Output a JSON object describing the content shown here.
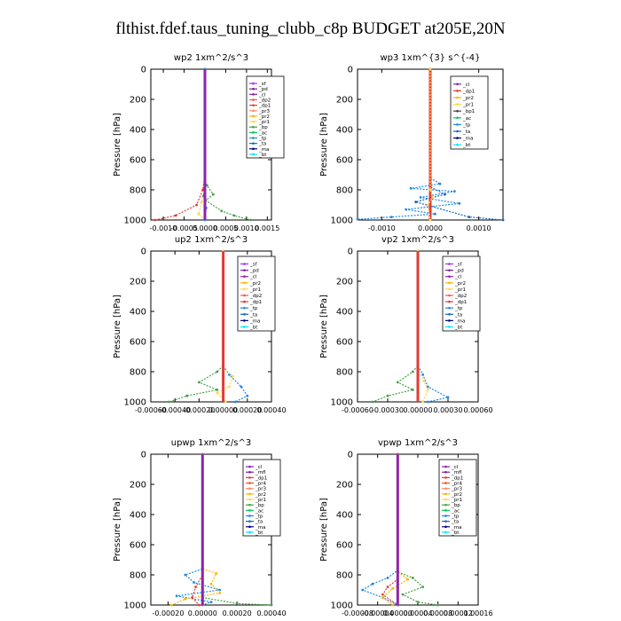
{
  "figure": {
    "title": "flthist.fdef.taus_tuning_clubb_c8p  BUDGET at205E,20N"
  },
  "legend_colors": {
    "_sf": "#9b30ff",
    "_pd": "#7b1fa2",
    "_cl": "#8e24aa",
    "_mfl": "#7b1fa2",
    "_dp1": "#e53935",
    "_dp2": "#ff5252",
    "_pr1": "#ffd54f",
    "_pr2": "#ffb300",
    "_pr3": "#ff8a65",
    "_pr4": "#f4511e",
    "_bp": "#43a047",
    "_ac": "#00c853",
    "_tp": "#1e88e5",
    "_ta": "#1565c0",
    "_ma": "#000080",
    "_bt": "#00e5ff"
  },
  "chart_data": [
    {
      "type": "line",
      "title": "wp2   1xm^2/s^3",
      "ylabel": "Pressure [hPa]",
      "ylim": [
        1000,
        0
      ],
      "xlim": [
        -0.0013,
        0.0016
      ],
      "xticks": [
        -0.001,
        -0.0005,
        0.0,
        0.0005,
        0.001,
        0.0015
      ],
      "xtick_labels": [
        "-0.0010",
        "-0.0005",
        "0.0000",
        "0.0005",
        "0.0010",
        "0.0015"
      ],
      "yticks": [
        0,
        200,
        400,
        600,
        800,
        1000
      ],
      "ytick_labels": [
        "0",
        "200",
        "400",
        "600",
        "800",
        "1000"
      ],
      "legend": [
        "_sf",
        "_pd",
        "_cl",
        "_dp2",
        "_dp1",
        "_pr3",
        "_pr2",
        "_pr1",
        "_bp",
        "_ac",
        "_tp",
        "_ta",
        "_ma",
        "_bt"
      ],
      "series": [
        {
          "name": "_dp1",
          "color": "#e53935",
          "points": [
            [
              0,
              0
            ],
            [
              0,
              700
            ],
            [
              -5e-05,
              800
            ],
            [
              -0.0002,
              900
            ],
            [
              -0.0007,
              970
            ],
            [
              -0.0012,
              1000
            ]
          ]
        },
        {
          "name": "_pr1",
          "color": "#ffd54f",
          "points": [
            [
              0,
              0
            ],
            [
              0,
              780
            ],
            [
              -8e-05,
              880
            ],
            [
              -0.00015,
              960
            ],
            [
              0,
              1000
            ]
          ]
        },
        {
          "name": "_bp",
          "color": "#43a047",
          "points": [
            [
              0,
              0
            ],
            [
              0,
              740
            ],
            [
              5e-05,
              770
            ],
            [
              0.0002,
              830
            ],
            [
              2e-05,
              870
            ],
            [
              0.0004,
              940
            ],
            [
              0.0007,
              970
            ],
            [
              0.0011,
              1000
            ]
          ]
        },
        {
          "name": "_tp",
          "color": "#1e88e5",
          "points": [
            [
              0,
              0
            ],
            [
              0,
              760
            ],
            [
              -3e-05,
              840
            ],
            [
              3e-05,
              920
            ],
            [
              0,
              1000
            ]
          ]
        },
        {
          "name": "_cl",
          "color": "#8e24aa",
          "points": [
            [
              0,
              0
            ],
            [
              0,
              1000
            ]
          ]
        }
      ]
    },
    {
      "type": "line",
      "title": "wp3   1xm^{3} s^{-4}",
      "ylabel": "Pressure [hPa]",
      "ylim": [
        1000,
        0
      ],
      "xlim": [
        -0.0015,
        0.0015
      ],
      "xticks": [
        -0.001,
        0.0,
        0.001
      ],
      "xtick_labels": [
        "-0.0010",
        "0.0000",
        "0.0010"
      ],
      "yticks": [
        0,
        200,
        400,
        600,
        800,
        1000
      ],
      "ytick_labels": [
        "0",
        "200",
        "400",
        "600",
        "800",
        "1000"
      ],
      "legend": [
        "_cl",
        "_dp1",
        "_pr2",
        "_pr1",
        "_bp1",
        "_ac",
        "_tp",
        "_ta",
        "_ma",
        "_bt"
      ],
      "series": [
        {
          "name": "_tp",
          "color": "#1e88e5",
          "points": [
            [
              0,
              0
            ],
            [
              0,
              720
            ],
            [
              0.0002,
              760
            ],
            [
              -0.0004,
              790
            ],
            [
              0.0005,
              810
            ],
            [
              -0.0002,
              850
            ],
            [
              0.0006,
              890
            ],
            [
              -0.0005,
              930
            ],
            [
              0.0001,
              960
            ],
            [
              -0.0008,
              980
            ],
            [
              -0.0015,
              995
            ]
          ]
        },
        {
          "name": "_ta",
          "color": "#1565c0",
          "points": [
            [
              0,
              0
            ],
            [
              0,
              780
            ],
            [
              0.0003,
              830
            ],
            [
              -0.0003,
              880
            ],
            [
              0.0008,
              980
            ],
            [
              0.0015,
              1000
            ]
          ]
        },
        {
          "name": "_dp1",
          "color": "#e53935",
          "points": [
            [
              0,
              0
            ],
            [
              0,
              1000
            ]
          ]
        },
        {
          "name": "_pr1",
          "color": "#ffd54f",
          "points": [
            [
              0,
              0
            ],
            [
              0,
              800
            ],
            [
              5e-05,
              850
            ],
            [
              -5e-05,
              900
            ],
            [
              0,
              1000
            ]
          ]
        }
      ]
    },
    {
      "type": "line",
      "title": "up2   1xm^2/s^3",
      "ylabel": "Pressure [hPa]",
      "ylim": [
        1000,
        0
      ],
      "xlim": [
        -0.0006,
        0.0004
      ],
      "xticks": [
        -0.0006,
        -0.0004,
        -0.0002,
        0.0,
        0.0002,
        0.0004
      ],
      "xtick_labels": [
        "-0.00060",
        "-0.00040",
        "-0.00020",
        "0.00000",
        "0.00020",
        "0.00040"
      ],
      "yticks": [
        0,
        200,
        400,
        600,
        800,
        1000
      ],
      "ytick_labels": [
        "0",
        "200",
        "400",
        "600",
        "800",
        "1000"
      ],
      "legend": [
        "_sf",
        "_pd",
        "_cl",
        "_pr2",
        "_pr1",
        "_dp2",
        "_dp1",
        "_tp",
        "_ta",
        "_ma",
        "_bt"
      ],
      "series": [
        {
          "name": "_dp2",
          "color": "#43a047",
          "points": [
            [
              0,
              0
            ],
            [
              0,
              760
            ],
            [
              -5e-05,
              800
            ],
            [
              -0.0002,
              870
            ],
            [
              -5e-05,
              920
            ],
            [
              -0.0003,
              960
            ],
            [
              -0.00045,
              1000
            ]
          ]
        },
        {
          "name": "_tp",
          "color": "#1e88e5",
          "points": [
            [
              0,
              0
            ],
            [
              0,
              760
            ],
            [
              5e-05,
              820
            ],
            [
              0.00015,
              900
            ],
            [
              0.0002,
              960
            ],
            [
              0.0001,
              1000
            ]
          ]
        },
        {
          "name": "_pr1",
          "color": "#ffd54f",
          "points": [
            [
              0,
              0
            ],
            [
              0,
              780
            ],
            [
              8e-05,
              830
            ],
            [
              5e-05,
              900
            ],
            [
              -5e-05,
              940
            ],
            [
              2e-05,
              1000
            ]
          ]
        },
        {
          "name": "_cl",
          "color": "#e53935",
          "points": [
            [
              0,
              0
            ],
            [
              0,
              1000
            ]
          ]
        }
      ]
    },
    {
      "type": "line",
      "title": "vp2   1xm^2/s^3",
      "ylabel": "Pressure [hPa]",
      "ylim": [
        1000,
        0
      ],
      "xlim": [
        -0.0006,
        0.0006
      ],
      "xticks": [
        -0.0006,
        -0.0003,
        0.0,
        0.0003,
        0.0006
      ],
      "xtick_labels": [
        "-0.00060",
        "-0.00030",
        "0.00000",
        "0.00030",
        "0.00060"
      ],
      "yticks": [
        0,
        200,
        400,
        600,
        800,
        1000
      ],
      "ytick_labels": [
        "0",
        "200",
        "400",
        "600",
        "800",
        "1000"
      ],
      "legend": [
        "_sf",
        "_pd",
        "_cl",
        "_pr2",
        "_pr1",
        "_dp2",
        "_dp1",
        "_tp",
        "_ta",
        "_ma",
        "_bt"
      ],
      "series": [
        {
          "name": "_dp2",
          "color": "#43a047",
          "points": [
            [
              0,
              0
            ],
            [
              0,
              760
            ],
            [
              -5e-05,
              800
            ],
            [
              -0.0002,
              870
            ],
            [
              -5e-05,
              920
            ],
            [
              -0.0003,
              960
            ],
            [
              -0.00045,
              1000
            ]
          ]
        },
        {
          "name": "_tp",
          "color": "#1e88e5",
          "points": [
            [
              0,
              0
            ],
            [
              0,
              760
            ],
            [
              5e-05,
              820
            ],
            [
              0.0001,
              900
            ],
            [
              0.0003,
              970
            ],
            [
              0.0001,
              1000
            ]
          ]
        },
        {
          "name": "_pr1",
          "color": "#ffd54f",
          "points": [
            [
              0,
              0
            ],
            [
              0,
              800
            ],
            [
              6e-05,
              860
            ],
            [
              0.0001,
              920
            ],
            [
              5e-05,
              1000
            ]
          ]
        },
        {
          "name": "_cl",
          "color": "#e53935",
          "points": [
            [
              0,
              0
            ],
            [
              0,
              1000
            ]
          ]
        }
      ]
    },
    {
      "type": "line",
      "title": "upwp   1xm^2/s^3",
      "ylabel": "Pressure [hPa]",
      "ylim": [
        1000,
        0
      ],
      "xlim": [
        -0.0003,
        0.0004
      ],
      "xticks": [
        -0.0002,
        0.0,
        0.0002,
        0.0004
      ],
      "xtick_labels": [
        "-0.00020",
        "0.00000",
        "0.00020",
        "0.00040"
      ],
      "yticks": [
        0,
        200,
        400,
        600,
        800,
        1000
      ],
      "ytick_labels": [
        "0",
        "200",
        "400",
        "600",
        "800",
        "1000"
      ],
      "legend": [
        "_cl",
        "_mfl",
        "_dp1",
        "_pr4",
        "_pr3",
        "_pr2",
        "_pr1",
        "_bp",
        "_ac",
        "_tp",
        "_ta",
        "_ma",
        "_bt"
      ],
      "series": [
        {
          "name": "_tp",
          "color": "#1e88e5",
          "points": [
            [
              0,
              0
            ],
            [
              0,
              760
            ],
            [
              -0.0001,
              800
            ],
            [
              -5e-05,
              850
            ],
            [
              0.0001,
              900
            ],
            [
              -0.00015,
              940
            ],
            [
              5e-05,
              980
            ],
            [
              0,
              1000
            ]
          ]
        },
        {
          "name": "_pr2",
          "color": "#ffb300",
          "points": [
            [
              0,
              0
            ],
            [
              0,
              760
            ],
            [
              8e-05,
              790
            ],
            [
              5e-05,
              860
            ],
            [
              0.0001,
              920
            ],
            [
              -0.0001,
              960
            ],
            [
              -0.00018,
              1000
            ]
          ]
        },
        {
          "name": "_dp1",
          "color": "#e53935",
          "points": [
            [
              0,
              0
            ],
            [
              0,
              800
            ],
            [
              -4e-05,
              880
            ],
            [
              -6e-05,
              950
            ],
            [
              -2e-05,
              1000
            ]
          ]
        },
        {
          "name": "_bp",
          "color": "#43a047",
          "points": [
            [
              0,
              0
            ],
            [
              0,
              950
            ],
            [
              0.0002,
              990
            ],
            [
              0.0004,
              1000
            ]
          ]
        },
        {
          "name": "_cl",
          "color": "#8e24aa",
          "points": [
            [
              0,
              0
            ],
            [
              0,
              1000
            ]
          ]
        }
      ]
    },
    {
      "type": "line",
      "title": "vpwp   1xm^2/s^3",
      "ylabel": "Pressure [hPa]",
      "ylim": [
        1000,
        0
      ],
      "xlim": [
        -8e-05,
        0.00016
      ],
      "xticks": [
        -8e-05,
        -4e-05,
        0.0,
        4e-05,
        8e-05,
        0.00012,
        0.00016
      ],
      "xtick_labels": [
        "-0.00008",
        "-0.00004",
        "0.00000",
        "0.00004",
        "0.00008",
        "0.00012",
        "0.00016"
      ],
      "yticks": [
        0,
        200,
        400,
        600,
        800,
        1000
      ],
      "ytick_labels": [
        "0",
        "200",
        "400",
        "600",
        "800",
        "1000"
      ],
      "legend": [
        "_cl",
        "_mfl",
        "_dp1",
        "_pr4",
        "_pr3",
        "_pr2",
        "_pr1",
        "_bp",
        "_ac",
        "_tp",
        "_ta",
        "_ma",
        "_bt"
      ],
      "series": [
        {
          "name": "_tp",
          "color": "#1e88e5",
          "points": [
            [
              0,
              0
            ],
            [
              0,
              770
            ],
            [
              -2e-05,
              820
            ],
            [
              -5e-05,
              860
            ],
            [
              -7e-05,
              900
            ],
            [
              -3e-05,
              950
            ],
            [
              0,
              1000
            ]
          ]
        },
        {
          "name": "_bp",
          "color": "#43a047",
          "points": [
            [
              0,
              0
            ],
            [
              0,
              780
            ],
            [
              3e-05,
              820
            ],
            [
              5e-05,
              880
            ],
            [
              1e-05,
              930
            ],
            [
              4e-05,
              980
            ],
            [
              8e-05,
              1000
            ]
          ]
        },
        {
          "name": "_pr2",
          "color": "#ffb300",
          "points": [
            [
              0,
              0
            ],
            [
              0,
              780
            ],
            [
              2e-05,
              830
            ],
            [
              -1e-05,
              890
            ],
            [
              -3e-05,
              950
            ],
            [
              -1e-05,
              1000
            ]
          ]
        },
        {
          "name": "_dp1",
          "color": "#e53935",
          "points": [
            [
              0,
              0
            ],
            [
              0,
              830
            ],
            [
              -2e-05,
              880
            ],
            [
              -3e-05,
              930
            ],
            [
              0,
              1000
            ]
          ]
        },
        {
          "name": "_cl",
          "color": "#8e24aa",
          "points": [
            [
              0,
              0
            ],
            [
              0,
              1000
            ]
          ]
        }
      ]
    }
  ]
}
